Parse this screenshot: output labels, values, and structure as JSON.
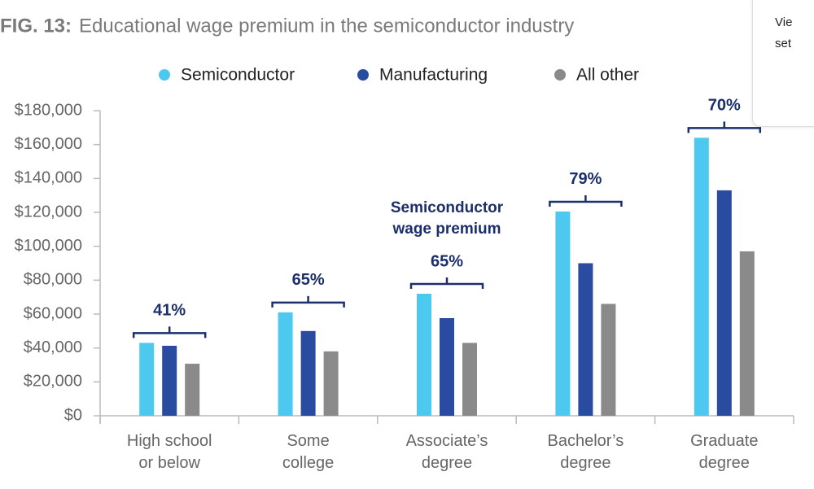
{
  "chart_data": {
    "type": "bar",
    "fig_label": "FIG. 13:",
    "title": "Educational wage premium in the semiconductor industry",
    "categories": [
      "High school or below",
      "Some college",
      "Associate’s degree",
      "Bachelor’s degree",
      "Graduate degree"
    ],
    "series": [
      {
        "name": "Semiconductor",
        "color": "#4dc9f0",
        "values": [
          43000,
          61000,
          72000,
          120500,
          164000
        ]
      },
      {
        "name": "Manufacturing",
        "color": "#2a4ca0",
        "values": [
          41300,
          50000,
          57600,
          90000,
          133000
        ]
      },
      {
        "name": "All other",
        "color": "#8a8a8a",
        "values": [
          30700,
          38000,
          43000,
          66000,
          97000
        ]
      }
    ],
    "ylim": [
      0,
      180000
    ],
    "yticks": [
      {
        "value": 0,
        "label": "$0"
      },
      {
        "value": 20000,
        "label": "$20,000"
      },
      {
        "value": 40000,
        "label": "$40,000"
      },
      {
        "value": 60000,
        "label": "$60,000"
      },
      {
        "value": 80000,
        "label": "$80,000"
      },
      {
        "value": 100000,
        "label": "$100,000"
      },
      {
        "value": 120000,
        "label": "$120,000"
      },
      {
        "value": 140000,
        "label": "$140,000"
      },
      {
        "value": 160000,
        "label": "$160,000"
      },
      {
        "value": 180000,
        "label": "$180,000"
      }
    ],
    "grid": false,
    "premium": {
      "label": "Semiconductor wage premium",
      "values": [
        41,
        65,
        65,
        79,
        70
      ],
      "value_labels": [
        "41%",
        "65%",
        "65%",
        "79%",
        "70%"
      ]
    }
  },
  "popup": {
    "lines": [
      "Vie",
      "set"
    ]
  }
}
